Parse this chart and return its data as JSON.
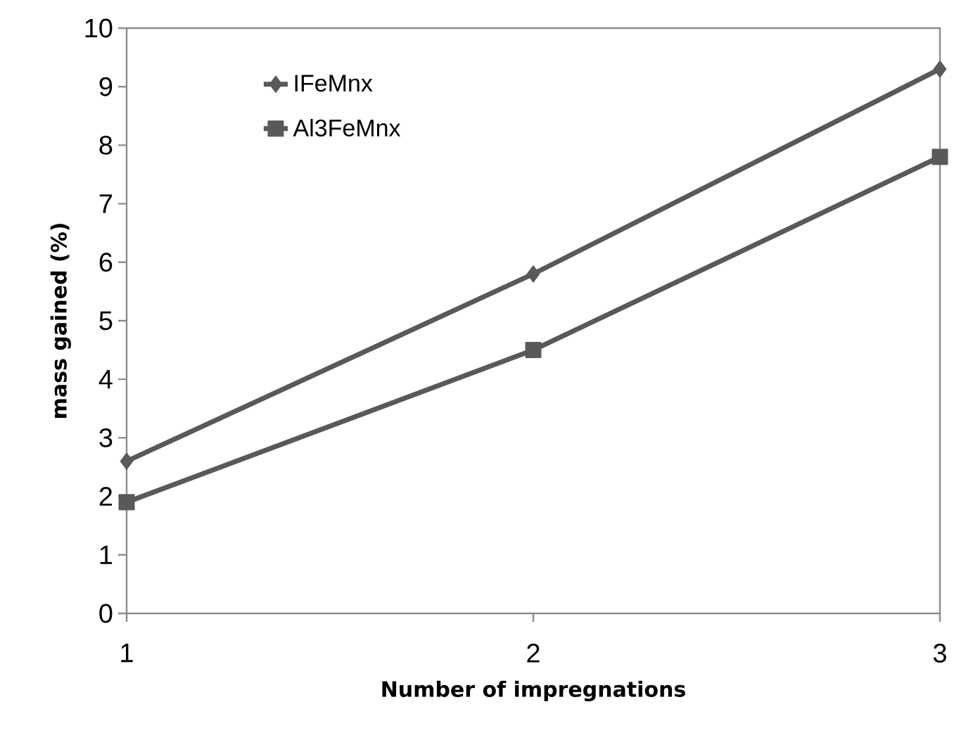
{
  "chart_data": {
    "type": "line",
    "xlabel": "Number of impregnations",
    "ylabel": "mass gained (%)",
    "x": [
      1,
      2,
      3
    ],
    "series": [
      {
        "name": "IFeMnx",
        "color": "#595959",
        "marker": "diamond",
        "values": [
          2.6,
          5.8,
          9.3
        ]
      },
      {
        "name": "Al3FeMnx",
        "color": "#595959",
        "marker": "square",
        "values": [
          1.9,
          4.5,
          7.8
        ]
      }
    ],
    "xlim": [
      1,
      3
    ],
    "xticks": [
      1,
      2,
      3
    ],
    "ylim": [
      0,
      10
    ],
    "yticks": [
      0,
      1,
      2,
      3,
      4,
      5,
      6,
      7,
      8,
      9,
      10
    ],
    "grid": false,
    "legend": "top left",
    "line_style": "solid"
  }
}
